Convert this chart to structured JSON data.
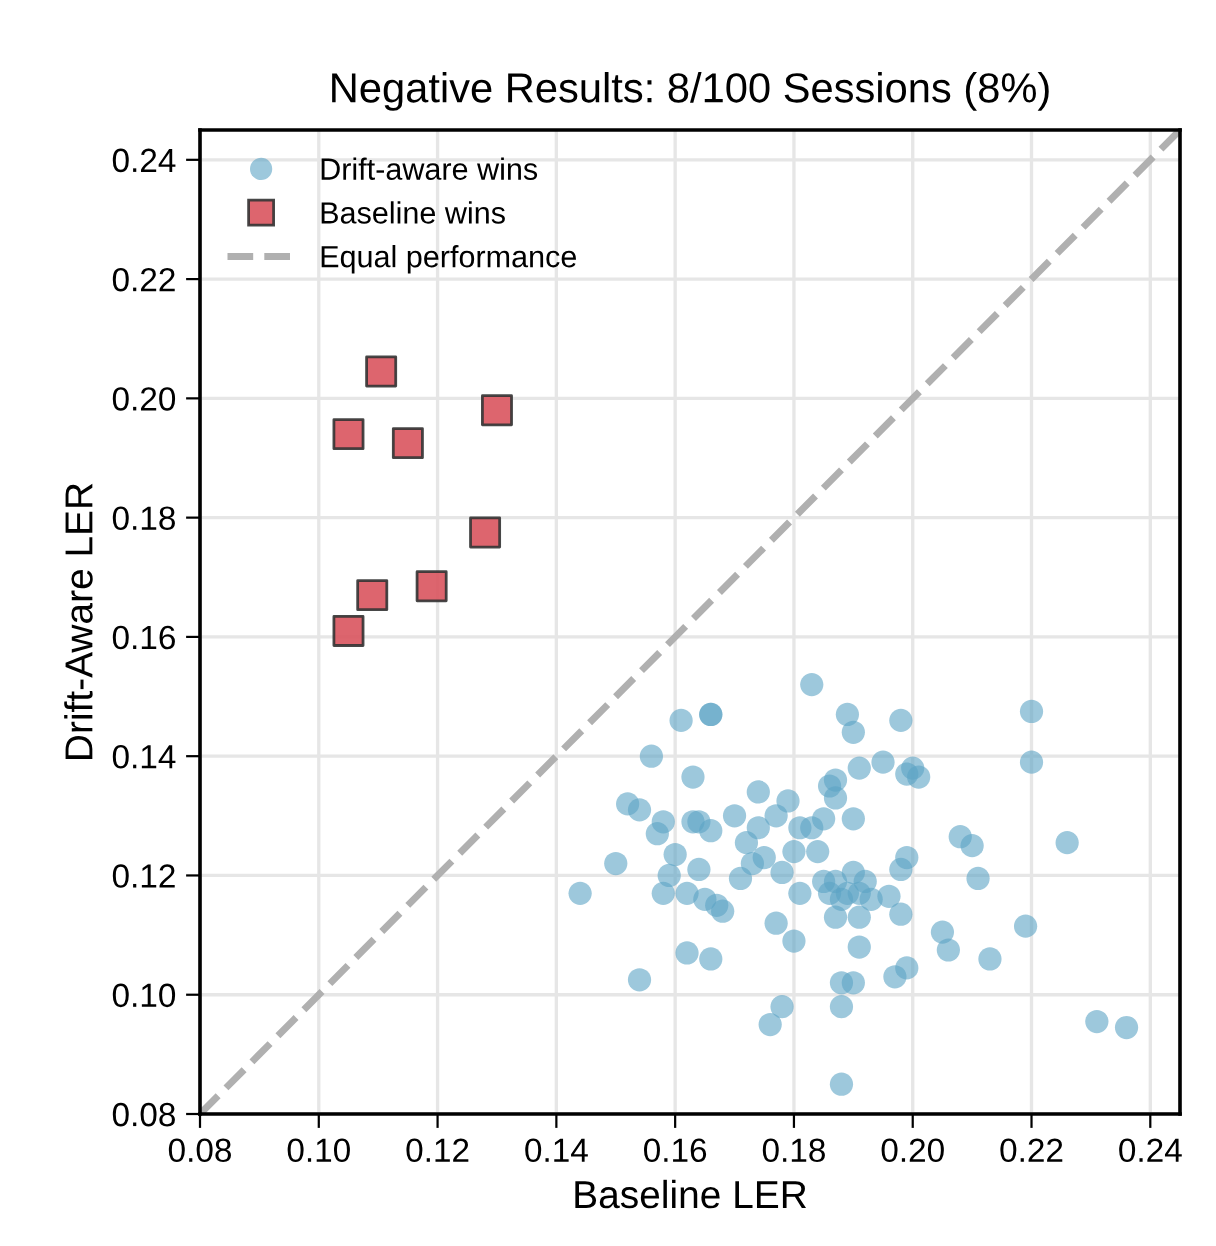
{
  "chart_data": {
    "type": "scatter",
    "title": "Negative Results: 8/100 Sessions (8%)",
    "xlabel": "Baseline LER",
    "ylabel": "Drift-Aware LER",
    "xlim": [
      0.08,
      0.245
    ],
    "ylim": [
      0.08,
      0.245
    ],
    "xticks": [
      0.08,
      {
        "value": 0.1,
        "label": "0.10"
      },
      0.12,
      0.14,
      0.16,
      0.18,
      {
        "value": 0.2,
        "label": "0.20"
      },
      0.22,
      0.24
    ],
    "yticks": [
      0.08,
      {
        "value": 0.1,
        "label": "0.10"
      },
      0.12,
      0.14,
      0.16,
      0.18,
      {
        "value": 0.2,
        "label": "0.20"
      },
      0.22,
      0.24
    ],
    "grid": true,
    "legend": "top left",
    "series": [
      {
        "name": "Drift-aware wins",
        "color": "#5ba3c4",
        "marker": "circle",
        "x": [
          0.144,
          0.15,
          0.152,
          0.154,
          0.154,
          0.156,
          0.157,
          0.158,
          0.158,
          0.159,
          0.16,
          0.161,
          0.162,
          0.162,
          0.163,
          0.163,
          0.164,
          0.164,
          0.165,
          0.166,
          0.166,
          0.166,
          0.166,
          0.167,
          0.168,
          0.17,
          0.171,
          0.172,
          0.173,
          0.174,
          0.174,
          0.175,
          0.176,
          0.177,
          0.177,
          0.178,
          0.178,
          0.179,
          0.18,
          0.18,
          0.181,
          0.181,
          0.183,
          0.183,
          0.184,
          0.185,
          0.185,
          0.186,
          0.186,
          0.187,
          0.187,
          0.187,
          0.187,
          0.188,
          0.188,
          0.188,
          0.188,
          0.189,
          0.189,
          0.19,
          0.19,
          0.19,
          0.19,
          0.191,
          0.191,
          0.191,
          0.191,
          0.192,
          0.193,
          0.195,
          0.196,
          0.197,
          0.198,
          0.198,
          0.198,
          0.199,
          0.199,
          0.199,
          0.2,
          0.201,
          0.205,
          0.206,
          0.208,
          0.21,
          0.211,
          0.213,
          0.22,
          0.22,
          0.219,
          0.226,
          0.231,
          0.236
        ],
        "values": [
          0.117,
          0.122,
          0.132,
          0.1025,
          0.131,
          0.14,
          0.127,
          0.129,
          0.117,
          0.12,
          0.1235,
          0.146,
          0.107,
          0.117,
          0.129,
          0.1365,
          0.129,
          0.121,
          0.116,
          0.147,
          0.147,
          0.106,
          0.1275,
          0.115,
          0.114,
          0.13,
          0.1195,
          0.1255,
          0.122,
          0.134,
          0.128,
          0.123,
          0.095,
          0.112,
          0.13,
          0.098,
          0.1205,
          0.1325,
          0.124,
          0.109,
          0.128,
          0.117,
          0.152,
          0.128,
          0.124,
          0.119,
          0.1295,
          0.135,
          0.117,
          0.136,
          0.133,
          0.119,
          0.113,
          0.102,
          0.085,
          0.098,
          0.116,
          0.147,
          0.117,
          0.144,
          0.102,
          0.1205,
          0.1295,
          0.138,
          0.117,
          0.113,
          0.108,
          0.119,
          0.116,
          0.139,
          0.1165,
          0.103,
          0.146,
          0.1135,
          0.121,
          0.1045,
          0.137,
          0.123,
          0.138,
          0.1365,
          0.1105,
          0.1075,
          0.1265,
          0.125,
          0.1195,
          0.106,
          0.1475,
          0.139,
          0.1115,
          0.1255,
          0.0955,
          0.0945
        ]
      },
      {
        "name": "Baseline wins",
        "color": "#d9545e",
        "marker": "square",
        "x": [
          0.1105,
          0.105,
          0.115,
          0.13,
          0.128,
          0.119,
          0.109,
          0.105
        ],
        "values": [
          0.2045,
          0.194,
          0.1925,
          0.198,
          0.1775,
          0.1685,
          0.167,
          0.161
        ]
      },
      {
        "name": "Equal performance",
        "type": "line",
        "color": "#b0b0b0",
        "line_style": "dashed",
        "marker": "none",
        "x": [
          0.08,
          0.245
        ],
        "values": [
          0.08,
          0.245
        ]
      }
    ]
  }
}
